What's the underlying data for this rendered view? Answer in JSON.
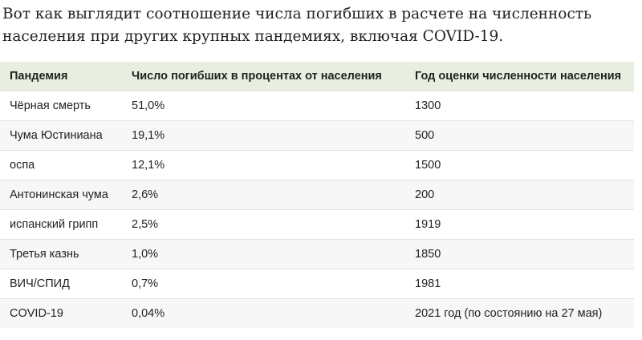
{
  "intro": "Вот как выглядит соотношение числа погибших в расчете на численность населения при других крупных пандемиях, включая COVID-19.",
  "table": {
    "headers": [
      "Пандемия",
      "Число погибших в процентах от населения",
      "Год оценки численности населения"
    ],
    "rows": [
      [
        "Чёрная смерть",
        "51,0%",
        "1300"
      ],
      [
        "Чума Юстиниана",
        "19,1%",
        "500"
      ],
      [
        "оспа",
        "12,1%",
        "1500"
      ],
      [
        "Антонинская чума",
        "2,6%",
        "200"
      ],
      [
        "испанский грипп",
        "2,5%",
        "1919"
      ],
      [
        "Третья казнь",
        "1,0%",
        "1850"
      ],
      [
        "ВИЧ/СПИД",
        "0,7%",
        "1981"
      ],
      [
        "COVID-19",
        "0,04%",
        "2021 год (по состоянию на 27 мая)"
      ]
    ]
  }
}
